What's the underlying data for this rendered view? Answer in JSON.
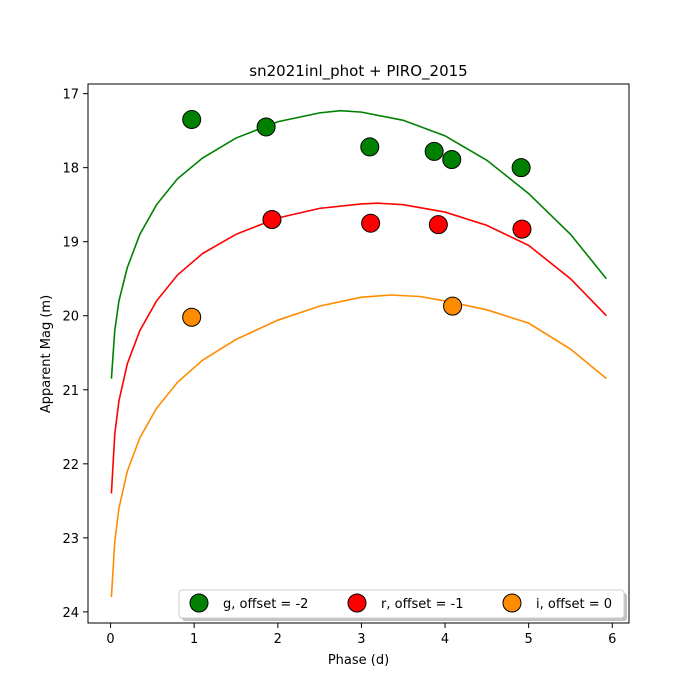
{
  "chart_data": {
    "type": "scatter",
    "title": "sn2021inl_phot + PIRO_2015",
    "xlabel": "Phase (d)",
    "ylabel": "Apparent Mag (m)",
    "xlim": [
      -0.27,
      6.2
    ],
    "ylim": [
      24.15,
      16.87
    ],
    "y_inverted": true,
    "xticks": [
      0,
      1,
      2,
      3,
      4,
      5,
      6
    ],
    "yticks": [
      17,
      18,
      19,
      20,
      21,
      22,
      23,
      24
    ],
    "grid": false,
    "legend_position": "lower-right",
    "series": [
      {
        "name": "g, offset = -2",
        "color": "#008000",
        "points": {
          "x": [
            0.97,
            1.86,
            3.1,
            3.87,
            4.08,
            4.91
          ],
          "y": [
            17.35,
            17.45,
            17.72,
            17.78,
            17.89,
            18.0
          ]
        },
        "model": {
          "x": [
            0.01,
            0.05,
            0.1,
            0.2,
            0.35,
            0.55,
            0.8,
            1.1,
            1.5,
            2.0,
            2.5,
            2.75,
            3.0,
            3.5,
            4.0,
            4.5,
            5.0,
            5.5,
            5.93
          ],
          "y": [
            20.85,
            20.2,
            19.8,
            19.35,
            18.9,
            18.5,
            18.15,
            17.87,
            17.6,
            17.38,
            17.26,
            17.23,
            17.25,
            17.36,
            17.57,
            17.9,
            18.35,
            18.9,
            19.5
          ]
        }
      },
      {
        "name": "r, offset = -1",
        "color": "#ff0000",
        "points": {
          "x": [
            1.93,
            3.11,
            3.92,
            4.92
          ],
          "y": [
            18.7,
            18.75,
            18.77,
            18.83
          ]
        },
        "model": {
          "x": [
            0.01,
            0.05,
            0.1,
            0.2,
            0.35,
            0.55,
            0.8,
            1.1,
            1.5,
            2.0,
            2.5,
            3.0,
            3.2,
            3.5,
            4.0,
            4.5,
            5.0,
            5.5,
            5.93
          ],
          "y": [
            22.4,
            21.6,
            21.15,
            20.65,
            20.2,
            19.8,
            19.45,
            19.16,
            18.9,
            18.68,
            18.55,
            18.49,
            18.48,
            18.5,
            18.6,
            18.78,
            19.05,
            19.5,
            20.0
          ]
        }
      },
      {
        "name": "i, offset = 0",
        "color": "#ff8c00",
        "points": {
          "x": [
            0.97,
            4.09
          ],
          "y": [
            20.02,
            19.87
          ]
        },
        "model": {
          "x": [
            0.01,
            0.05,
            0.1,
            0.2,
            0.35,
            0.55,
            0.8,
            1.1,
            1.5,
            2.0,
            2.5,
            3.0,
            3.35,
            3.7,
            4.0,
            4.5,
            5.0,
            5.5,
            5.93
          ],
          "y": [
            23.8,
            23.05,
            22.6,
            22.1,
            21.65,
            21.25,
            20.9,
            20.6,
            20.32,
            20.06,
            19.87,
            19.75,
            19.72,
            19.74,
            19.8,
            19.92,
            20.1,
            20.45,
            20.85
          ]
        }
      }
    ]
  }
}
